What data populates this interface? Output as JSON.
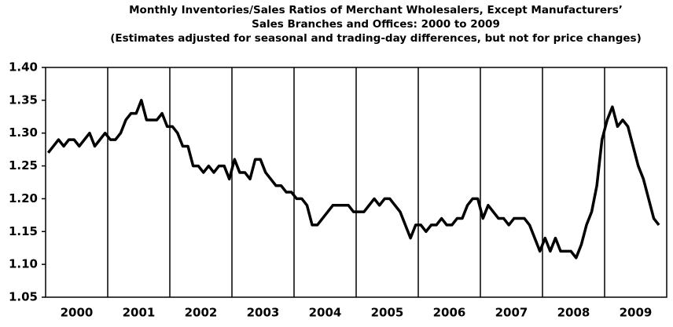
{
  "chart_data": {
    "type": "line",
    "title": [
      "Monthly Inventories/Sales Ratios of Merchant Wholesalers, Except Manufacturers’",
      "Sales Branches and Offices: 2000 to 2009",
      "(Estimates adjusted for seasonal and trading-day differences, but not for price changes)"
    ],
    "categories": [
      "2000",
      "2001",
      "2002",
      "2003",
      "2004",
      "2005",
      "2006",
      "2007",
      "2008",
      "2009"
    ],
    "values": [
      [
        1.27,
        1.28,
        1.29,
        1.28,
        1.29,
        1.29,
        1.28,
        1.29,
        1.3,
        1.28,
        1.29,
        1.3
      ],
      [
        1.29,
        1.29,
        1.3,
        1.32,
        1.33,
        1.33,
        1.35,
        1.32,
        1.32,
        1.32,
        1.33,
        1.31
      ],
      [
        1.31,
        1.3,
        1.28,
        1.28,
        1.25,
        1.25,
        1.24,
        1.25,
        1.24,
        1.25,
        1.25,
        1.23
      ],
      [
        1.26,
        1.24,
        1.24,
        1.23,
        1.26,
        1.26,
        1.24,
        1.23,
        1.22,
        1.22,
        1.21,
        1.21
      ],
      [
        1.2,
        1.2,
        1.19,
        1.16,
        1.16,
        1.17,
        1.18,
        1.19,
        1.19,
        1.19,
        1.19,
        1.18
      ],
      [
        1.18,
        1.18,
        1.19,
        1.2,
        1.19,
        1.2,
        1.2,
        1.19,
        1.18,
        1.16,
        1.14,
        1.16
      ],
      [
        1.16,
        1.15,
        1.16,
        1.16,
        1.17,
        1.16,
        1.16,
        1.17,
        1.17,
        1.19,
        1.2,
        1.2
      ],
      [
        1.17,
        1.19,
        1.18,
        1.17,
        1.17,
        1.16,
        1.17,
        1.17,
        1.17,
        1.16,
        1.14,
        1.12
      ],
      [
        1.14,
        1.12,
        1.14,
        1.12,
        1.12,
        1.12,
        1.11,
        1.13,
        1.16,
        1.18,
        1.22,
        1.29
      ],
      [
        1.32,
        1.34,
        1.31,
        1.32,
        1.31,
        1.28,
        1.25,
        1.23,
        1.2,
        1.17,
        1.16
      ]
    ],
    "color": "#000000",
    "ylim": [
      1.05,
      1.4
    ],
    "yticks": [
      1.05,
      {
        "value": 1.1,
        "label": "1.10"
      },
      1.15,
      {
        "value": 1.2,
        "label": "1.20"
      },
      1.25,
      {
        "value": 1.3,
        "label": "1.30"
      },
      1.35,
      {
        "value": 1.4,
        "label": "1.40"
      }
    ]
  }
}
